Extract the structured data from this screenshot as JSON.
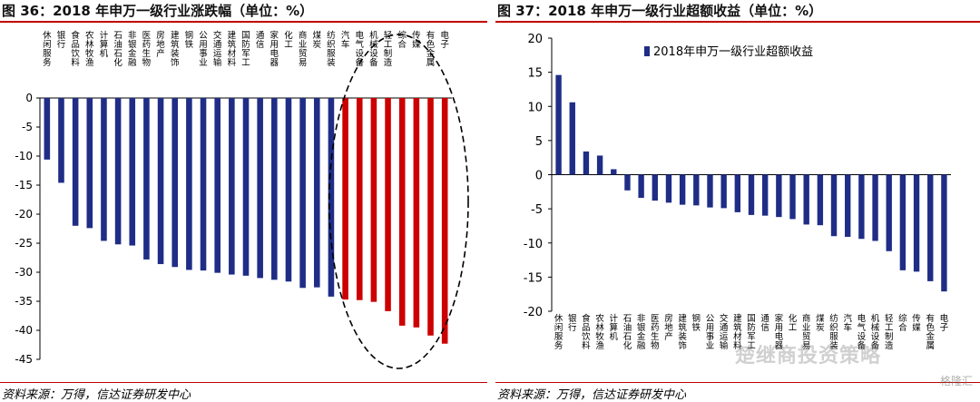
{
  "left_panel": {
    "title": "图 36：2018 年申万一级行业涨跌幅（单位：%）",
    "source": "资料来源：万得，信达证券研发中心"
  },
  "right_panel": {
    "title": "图 37：2018 年申万一级行业超额收益（单位：%）",
    "source": "资料来源：万得，信达证券研发中心"
  },
  "watermark": {
    "text": "楚继商投资策略",
    "brand": "格隆汇"
  },
  "chart_data": [
    {
      "type": "bar",
      "title": "图 36：2018 年申万一级行业涨跌幅（单位：%）",
      "categories": [
        "休闲服务",
        "银行",
        "食品饮料",
        "农林牧渔",
        "计算机",
        "石油石化",
        "非银金融",
        "医药生物",
        "房地产",
        "建筑装饰",
        "钢铁",
        "公用事业",
        "交通运输",
        "建筑材料",
        "国防军工",
        "通信",
        "家用电器",
        "化工",
        "商业贸易",
        "煤炭",
        "纺织服装",
        "汽车",
        "电气设备",
        "机械设备",
        "轻工制造",
        "综合",
        "传媒",
        "有色金属",
        "电子"
      ],
      "values": [
        -10.6,
        -14.6,
        -22.0,
        -22.4,
        -24.6,
        -25.2,
        -25.4,
        -27.8,
        -28.6,
        -29.1,
        -29.6,
        -29.7,
        -30.1,
        -30.4,
        -30.6,
        -31.0,
        -31.3,
        -31.6,
        -32.7,
        -32.6,
        -34.2,
        -34.7,
        -34.8,
        -35.1,
        -36.7,
        -39.2,
        -39.5,
        -40.9,
        -42.3
      ],
      "highlight_from_index": 21,
      "bar_color": "#1f2d86",
      "highlight_color": "#cc0000",
      "ylim": [
        -45,
        0
      ],
      "yticks": [
        0,
        -5,
        -10,
        -15,
        -20,
        -25,
        -30,
        -35,
        -40,
        -45
      ],
      "xlabel": "",
      "ylabel": "",
      "annotation": "dashed-ellipse-around-highlighted-bars"
    },
    {
      "type": "bar",
      "title": "图 37：2018 年申万一级行业超额收益（单位：%）",
      "categories": [
        "休闲服务",
        "银行",
        "食品饮料",
        "农林牧渔",
        "计算机",
        "石油石化",
        "非银金融",
        "医药生物",
        "房地产",
        "建筑装饰",
        "钢铁",
        "公用事业",
        "交通运输",
        "建筑材料",
        "国防军工",
        "通信",
        "家用电器",
        "化工",
        "商业贸易",
        "煤炭",
        "纺织服装",
        "汽车",
        "电气设备",
        "机械设备",
        "轻工制造",
        "综合",
        "传媒",
        "有色金属",
        "电子"
      ],
      "series": [
        {
          "name": "2018年申万一级行业超额收益",
          "values": [
            14.6,
            10.6,
            3.4,
            2.8,
            0.8,
            -2.3,
            -3.4,
            -3.8,
            -4.1,
            -4.4,
            -4.5,
            -4.8,
            -4.9,
            -5.5,
            -5.9,
            -6.0,
            -6.2,
            -6.5,
            -7.3,
            -7.4,
            -9.0,
            -9.1,
            -9.4,
            -9.7,
            -11.2,
            -14.0,
            -14.2,
            -15.6,
            -17.1
          ]
        }
      ],
      "bar_color": "#1f2d86",
      "ylim": [
        -20,
        20
      ],
      "yticks": [
        20,
        15,
        10,
        5,
        0,
        -5,
        -10,
        -15,
        -20
      ],
      "legend_position": "top",
      "xlabel": "",
      "ylabel": ""
    }
  ]
}
